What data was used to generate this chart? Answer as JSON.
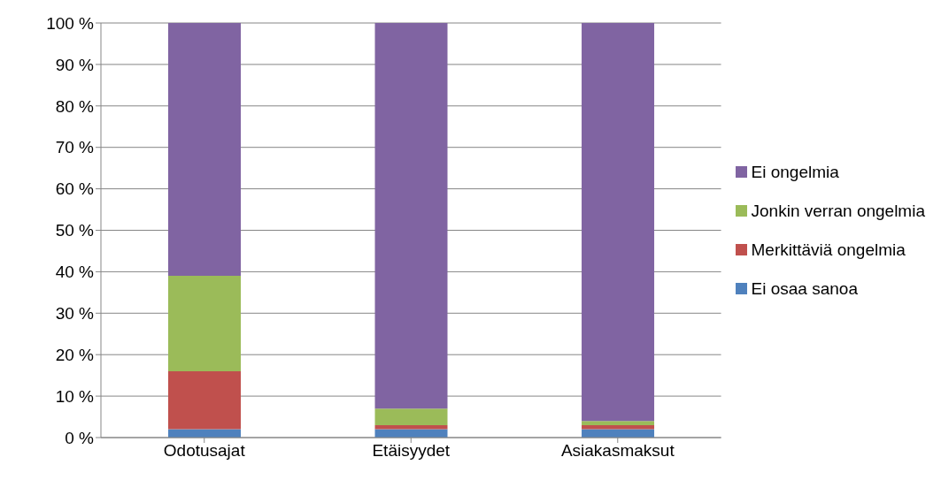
{
  "chart_data": {
    "type": "bar",
    "stacked": true,
    "categories": [
      "Odotusajat",
      "Etäisyydet",
      "Asiakasmaksut"
    ],
    "series": [
      {
        "name": "Ei osaa sanoa",
        "color": "#4f81bd",
        "values": [
          2,
          2,
          2
        ]
      },
      {
        "name": "Merkittäviä ongelmia",
        "color": "#c0504d",
        "values": [
          14,
          1,
          1
        ]
      },
      {
        "name": "Jonkin verran ongelmia",
        "color": "#9bbb59",
        "values": [
          23,
          4,
          1
        ]
      },
      {
        "name": "Ei ongelmia",
        "color": "#8064a2",
        "values": [
          61,
          93,
          96
        ]
      }
    ],
    "ylim": [
      0,
      100
    ],
    "yticks": [
      {
        "value": 0,
        "label": "0 %"
      },
      {
        "value": 10,
        "label": "10 %"
      },
      {
        "value": 20,
        "label": "20 %"
      },
      {
        "value": 30,
        "label": "30 %"
      },
      {
        "value": 40,
        "label": "40 %"
      },
      {
        "value": 50,
        "label": "50 %"
      },
      {
        "value": 60,
        "label": "60 %"
      },
      {
        "value": 70,
        "label": "70 %"
      },
      {
        "value": 80,
        "label": "80 %"
      },
      {
        "value": 90,
        "label": "90 %"
      },
      {
        "value": 100,
        "label": "100 %"
      }
    ],
    "grid": "y",
    "legend": "right"
  }
}
